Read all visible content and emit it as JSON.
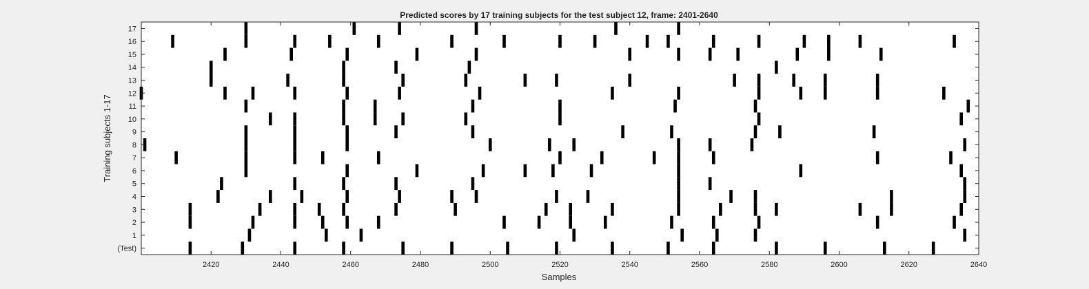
{
  "chart_data": {
    "type": "raster",
    "title": "Predicted scores by 17 training subjects for the test subject 12, frame: 2401-2640",
    "xlabel": "Samples",
    "ylabel": "Training subjects 1-17",
    "xlim": [
      2400,
      2640
    ],
    "x_ticks": [
      2420,
      2440,
      2460,
      2480,
      2500,
      2520,
      2540,
      2560,
      2580,
      2600,
      2620,
      2640
    ],
    "y_tick_labels": [
      "(Test)",
      "1",
      "2",
      "3",
      "4",
      "5",
      "6",
      "7",
      "8",
      "9",
      "10",
      "11",
      "12",
      "13",
      "14",
      "15",
      "16",
      "17"
    ],
    "grid": false,
    "background": "#ffffff",
    "figure_background": "#f0f0f0",
    "mark_color": "#000000",
    "rows": [
      {
        "label": "(Test)",
        "spikes": [
          2414,
          2429,
          2444,
          2458,
          2475,
          2489,
          2505,
          2519,
          2535,
          2551,
          2564,
          2582,
          2596,
          2613,
          2627
        ]
      },
      {
        "label": "1",
        "spikes": [
          2431,
          2453,
          2463,
          2524,
          2555,
          2565,
          2576,
          2636
        ]
      },
      {
        "label": "2",
        "spikes": [
          2414,
          2432,
          2444,
          2452,
          2459,
          2468,
          2504,
          2514,
          2523,
          2533,
          2552,
          2564,
          2577,
          2611,
          2633
        ]
      },
      {
        "label": "3",
        "spikes": [
          2414,
          2434,
          2444,
          2451,
          2458,
          2473,
          2490,
          2516,
          2523,
          2535,
          2554,
          2566,
          2576,
          2582,
          2606,
          2615,
          2635
        ]
      },
      {
        "label": "4",
        "spikes": [
          2422,
          2437,
          2446,
          2459,
          2474,
          2489,
          2496,
          2519,
          2528,
          2554,
          2569,
          2576,
          2615,
          2636
        ]
      },
      {
        "label": "5",
        "spikes": [
          2423,
          2444,
          2458,
          2473,
          2495,
          2554,
          2563,
          2636
        ]
      },
      {
        "label": "6",
        "spikes": [
          2430,
          2459,
          2479,
          2498,
          2510,
          2518,
          2529,
          2554,
          2589,
          2635
        ]
      },
      {
        "label": "7",
        "spikes": [
          2410,
          2430,
          2444,
          2452,
          2468,
          2520,
          2532,
          2547,
          2554,
          2564,
          2611,
          2632
        ]
      },
      {
        "label": "8",
        "spikes": [
          2401,
          2430,
          2444,
          2459,
          2500,
          2517,
          2524,
          2554,
          2563,
          2575,
          2636
        ]
      },
      {
        "label": "9",
        "spikes": [
          2430,
          2444,
          2459,
          2473,
          2495,
          2538,
          2552,
          2576,
          2583,
          2610
        ]
      },
      {
        "label": "10",
        "spikes": [
          2437,
          2444,
          2458,
          2467,
          2475,
          2493,
          2520,
          2577,
          2635
        ]
      },
      {
        "label": "11",
        "spikes": [
          2430,
          2458,
          2467,
          2495,
          2520,
          2553,
          2576,
          2637
        ]
      },
      {
        "label": "12",
        "spikes": [
          2400,
          2424,
          2432,
          2444,
          2459,
          2474,
          2497,
          2535,
          2554,
          2577,
          2589,
          2596,
          2611,
          2630
        ]
      },
      {
        "label": "13",
        "spikes": [
          2420,
          2442,
          2458,
          2475,
          2493,
          2510,
          2519,
          2540,
          2570,
          2577,
          2587,
          2596,
          2611
        ]
      },
      {
        "label": "14",
        "spikes": [
          2420,
          2458,
          2473,
          2494,
          2582
        ]
      },
      {
        "label": "15",
        "spikes": [
          2424,
          2443,
          2459,
          2479,
          2496,
          2540,
          2554,
          2563,
          2571,
          2588,
          2597,
          2612
        ]
      },
      {
        "label": "16",
        "spikes": [
          2409,
          2430,
          2444,
          2454,
          2468,
          2489,
          2504,
          2520,
          2530,
          2545,
          2551,
          2564,
          2577,
          2590,
          2597,
          2606,
          2633
        ]
      },
      {
        "label": "17",
        "spikes": [
          2430,
          2461,
          2474,
          2496,
          2536,
          2554
        ]
      }
    ]
  }
}
